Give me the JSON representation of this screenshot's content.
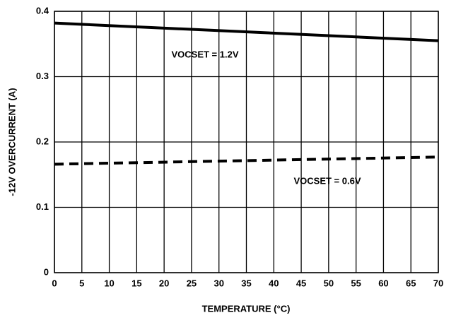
{
  "chart_data": {
    "type": "line",
    "x_label": "TEMPERATURE (°C)",
    "y_label": "-12V OVERCURRENT (A)",
    "x": [
      0,
      70
    ],
    "series": [
      {
        "name": "VOCSET = 1.2V",
        "color": "#000000",
        "style": "solid",
        "values": [
          0.382,
          0.355
        ]
      },
      {
        "name": "VOCSET = 0.6V",
        "color": "#000000",
        "style": "dashed",
        "values": [
          0.166,
          0.177
        ]
      }
    ],
    "xlim": [
      0,
      70
    ],
    "xticks": [
      0,
      5,
      10,
      15,
      20,
      25,
      30,
      35,
      40,
      45,
      50,
      55,
      60,
      65,
      70
    ],
    "ylim": [
      0,
      0.4
    ],
    "yticks": [
      0,
      0.1,
      0.2,
      0.3,
      0.4
    ],
    "grid": true
  }
}
